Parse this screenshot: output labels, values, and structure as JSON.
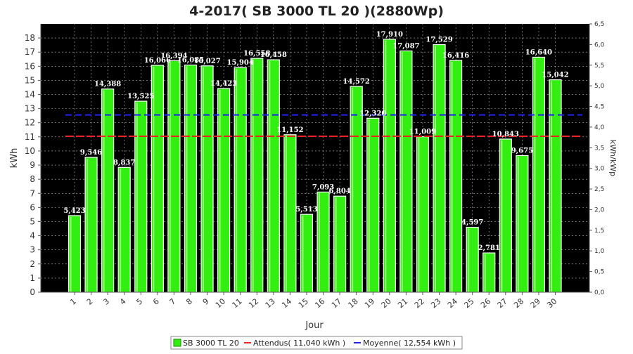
{
  "chart_data": {
    "type": "bar",
    "title": "4-2017( SB 3000 TL 20 )(2880Wp)",
    "xlabel": "Jour",
    "ylabel": "kWh",
    "y2label": "kWh/kWp",
    "ylim": [
      0,
      19
    ],
    "y2lim": [
      0,
      6.5
    ],
    "yticks": [
      "0",
      "1",
      "2",
      "3",
      "4",
      "5",
      "6",
      "7",
      "8",
      "9",
      "10",
      "11",
      "12",
      "13",
      "14",
      "15",
      "16",
      "17",
      "18"
    ],
    "y2ticks": [
      "0,0",
      "0,5",
      "1,0",
      "1,5",
      "2,0",
      "2,5",
      "3,0",
      "3,5",
      "4,0",
      "4,5",
      "5,0",
      "5,5",
      "6,0",
      "6,5"
    ],
    "categories": [
      "1",
      "2",
      "3",
      "4",
      "5",
      "6",
      "7",
      "8",
      "9",
      "10",
      "11",
      "12",
      "13",
      "14",
      "15",
      "16",
      "17",
      "18",
      "19",
      "20",
      "21",
      "22",
      "23",
      "24",
      "25",
      "26",
      "27",
      "28",
      "29",
      "30"
    ],
    "series": [
      {
        "name": "SB 3000 TL 20",
        "color": "#33ee11",
        "values": [
          5.423,
          9.546,
          14.388,
          8.837,
          13.525,
          16.066,
          16.394,
          16.085,
          16.027,
          14.423,
          15.904,
          16.558,
          16.458,
          11.152,
          5.513,
          7.093,
          6.804,
          14.572,
          12.32,
          17.91,
          17.087,
          11.009,
          17.529,
          16.416,
          4.597,
          2.781,
          10.843,
          9.675,
          16.64,
          15.042
        ],
        "labels": [
          "5,423",
          "9,546",
          "14,388",
          "8,837",
          "13,525",
          "16,066",
          "16,394",
          "16,085",
          "16,027",
          "14,423",
          "15,904",
          "16,558",
          "16,458",
          "11,152",
          "5,513",
          "7,093",
          "6,804",
          "14,572",
          "12,320",
          "17,910",
          "17,087",
          "11,009",
          "17,529",
          "16,416",
          "4,597",
          "2,781",
          "10,843",
          "9,675",
          "16,640",
          "15,042"
        ]
      }
    ],
    "reference_lines": [
      {
        "name": "Attendus( 11,040 kWh )",
        "value": 11.04,
        "color": "#ee2222"
      },
      {
        "name": "Moyenne( 12,554 kWh )",
        "value": 12.554,
        "color": "#2222ee"
      }
    ],
    "grid": true,
    "legend_position": "bottom-center",
    "plot_background": "#000000"
  }
}
